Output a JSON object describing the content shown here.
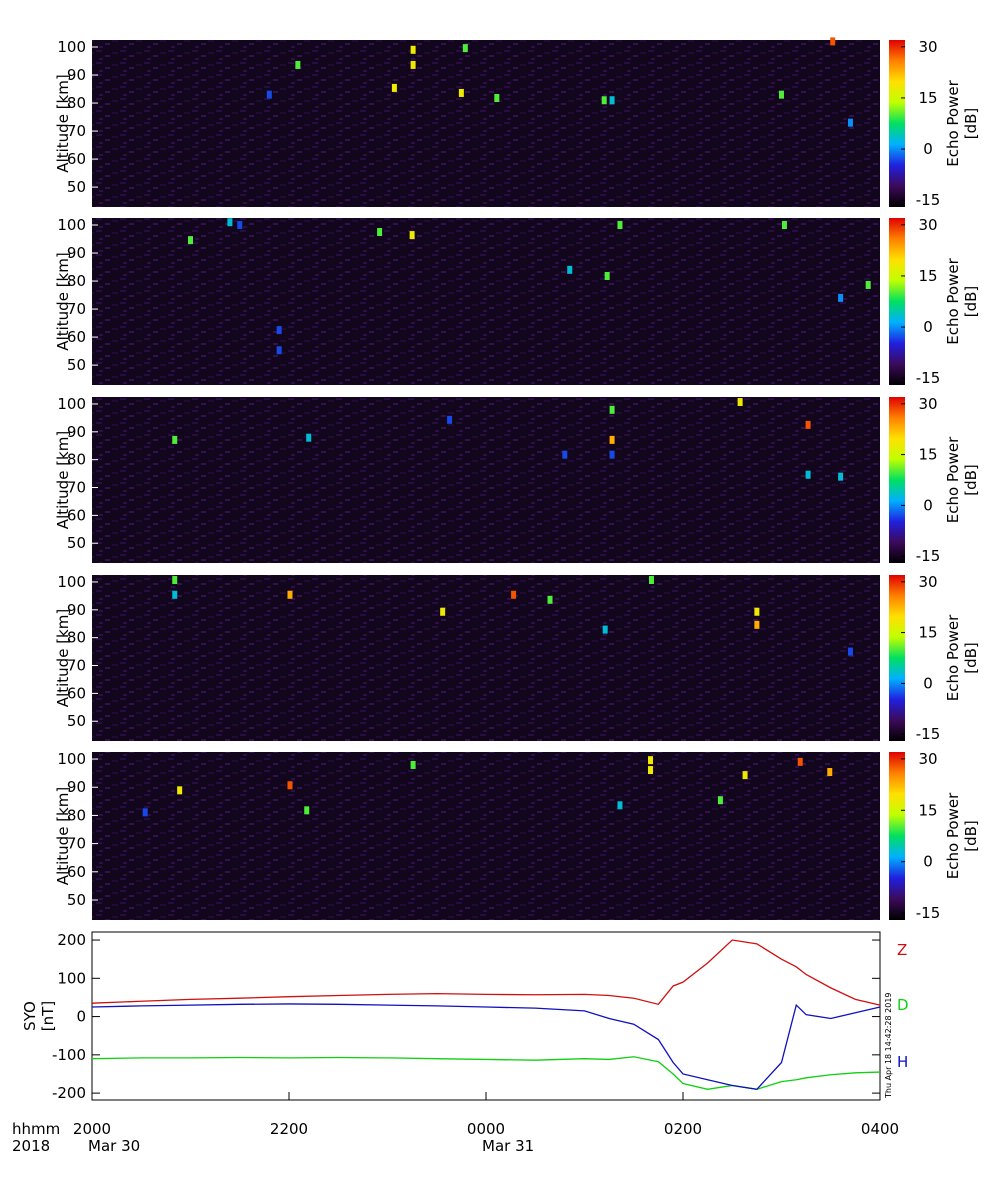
{
  "chart_data": [
    {
      "type": "heatmap",
      "ylabel": "Altitude [km]",
      "ylim": [
        42.9,
        102.5
      ],
      "yticks": [
        50,
        60,
        70,
        80,
        90,
        100
      ],
      "xlim": [
        0,
        8
      ],
      "colorbar_label": [
        "Echo Power",
        "[dB]"
      ],
      "clim": [
        -17,
        32
      ],
      "cticks": [
        -15,
        0,
        15,
        30
      ],
      "colormap": [
        "#000000",
        "#3c0a5a",
        "#2020e0",
        "#00b0ff",
        "#00e060",
        "#c0ff00",
        "#ffe000",
        "#ff8000",
        "#e00000"
      ],
      "echoes": {
        "t": [
          3.26,
          3.26,
          3.79,
          2.09,
          5.2,
          5.28,
          3.75,
          3.07,
          7.7,
          7.52,
          4.11,
          7.0,
          1.8
        ],
        "alt": [
          99,
          93.6,
          99.6,
          93.6,
          81,
          81,
          83.6,
          85.4,
          73,
          102,
          81.8,
          83,
          83
        ],
        "power": [
          18,
          18,
          10,
          10,
          10,
          3,
          18,
          18,
          0,
          28,
          10,
          10,
          -3
        ]
      }
    },
    {
      "type": "heatmap",
      "ylabel": "Altitude [km]",
      "ylim": [
        42.9,
        102.5
      ],
      "yticks": [
        50,
        60,
        70,
        80,
        90,
        100
      ],
      "xlim": [
        0,
        8
      ],
      "colorbar_label": [
        "Echo Power",
        "[dB]"
      ],
      "clim": [
        -17,
        32
      ],
      "cticks": [
        -15,
        0,
        15,
        30
      ],
      "colormap": [
        "#000000",
        "#3c0a5a",
        "#2020e0",
        "#00b0ff",
        "#00e060",
        "#c0ff00",
        "#ffe000",
        "#ff8000",
        "#e00000"
      ],
      "echoes": {
        "t": [
          3.25,
          1.4,
          1.5,
          1.9,
          1.9,
          5.23,
          4.85,
          5.36,
          7.6,
          7.88,
          7.03,
          2.92,
          1.0
        ],
        "alt": [
          96.4,
          101,
          100,
          55.3,
          62.5,
          81.8,
          84,
          100,
          74,
          78.6,
          100,
          97.5,
          94.6
        ],
        "power": [
          18,
          3,
          -3,
          -3,
          -3,
          10,
          3,
          10,
          0,
          10,
          10,
          10,
          10
        ]
      }
    },
    {
      "type": "heatmap",
      "ylabel": "Altitude [km]",
      "ylim": [
        42.9,
        102.5
      ],
      "yticks": [
        50,
        60,
        70,
        80,
        90,
        100
      ],
      "xlim": [
        0,
        8
      ],
      "colorbar_label": [
        "Echo Power",
        "[dB]"
      ],
      "clim": [
        -17,
        32
      ],
      "cticks": [
        -15,
        0,
        15,
        30
      ],
      "colormap": [
        "#000000",
        "#3c0a5a",
        "#2020e0",
        "#00b0ff",
        "#00e060",
        "#c0ff00",
        "#ffe000",
        "#ff8000",
        "#e00000"
      ],
      "echoes": {
        "t": [
          7.27,
          7.6,
          5.28,
          5.28,
          7.27,
          6.58,
          3.63,
          2.2,
          4.8,
          5.28,
          0.84
        ],
        "alt": [
          74.6,
          73.9,
          97.9,
          87.1,
          92.5,
          100.7,
          94.3,
          87.9,
          81.8,
          81.8,
          87.1
        ],
        "power": [
          3,
          3,
          10,
          23,
          28,
          18,
          -3,
          3,
          -3,
          -3,
          10
        ]
      }
    },
    {
      "type": "heatmap",
      "ylabel": "Altitude [km]",
      "ylim": [
        42.9,
        102.5
      ],
      "yticks": [
        50,
        60,
        70,
        80,
        90,
        100
      ],
      "xlim": [
        0,
        8
      ],
      "colorbar_label": [
        "Echo Power",
        "[dB]"
      ],
      "clim": [
        -17,
        32
      ],
      "cticks": [
        -15,
        0,
        15,
        30
      ],
      "colormap": [
        "#000000",
        "#3c0a5a",
        "#2020e0",
        "#00b0ff",
        "#00e060",
        "#c0ff00",
        "#ffe000",
        "#ff8000",
        "#e00000"
      ],
      "echoes": {
        "t": [
          0.84,
          0.84,
          3.56,
          4.28,
          2.01,
          6.75,
          6.75,
          5.21,
          5.68,
          7.7,
          4.65
        ],
        "alt": [
          100.7,
          95.4,
          89.3,
          95.4,
          95.4,
          89.3,
          84.6,
          82.9,
          100.7,
          75,
          93.6
        ],
        "power": [
          10,
          3,
          18,
          28,
          23,
          18,
          23,
          3,
          10,
          -3,
          10
        ]
      }
    },
    {
      "type": "heatmap",
      "ylabel": "Altitude [km]",
      "ylim": [
        42.9,
        102.5
      ],
      "yticks": [
        50,
        60,
        70,
        80,
        90,
        100
      ],
      "xlim": [
        0,
        8
      ],
      "colorbar_label": [
        "Echo Power",
        "[dB]"
      ],
      "clim": [
        -17,
        32
      ],
      "cticks": [
        -15,
        0,
        15,
        30
      ],
      "colormap": [
        "#000000",
        "#3c0a5a",
        "#2020e0",
        "#00b0ff",
        "#00e060",
        "#c0ff00",
        "#ffe000",
        "#ff8000",
        "#e00000"
      ],
      "echoes": {
        "t": [
          5.67,
          5.67,
          3.26,
          2.01,
          0.89,
          0.54,
          6.38,
          5.36,
          6.63,
          7.49,
          7.19,
          2.18
        ],
        "alt": [
          99.6,
          96.1,
          97.9,
          90.7,
          88.9,
          81.1,
          85.4,
          83.6,
          94.3,
          95.4,
          99.0,
          81.8
        ],
        "power": [
          18,
          18,
          10,
          28,
          18,
          -3,
          10,
          3,
          18,
          23,
          28,
          10
        ]
      }
    },
    {
      "type": "line",
      "ylabel": [
        "SYO",
        "[nT]"
      ],
      "ylim": [
        -218,
        221
      ],
      "yticks": [
        -200,
        -100,
        0,
        100,
        200
      ],
      "xlim": [
        0,
        8
      ],
      "xticks": [
        {
          "value": 0,
          "label": "2000"
        },
        {
          "value": 2,
          "label": "2200"
        },
        {
          "value": 4,
          "label": "0000"
        },
        {
          "value": 6,
          "label": "0200"
        },
        {
          "value": 8,
          "label": "0400"
        }
      ],
      "date_labels": [
        {
          "value": 0,
          "label": "Mar 30"
        },
        {
          "value": 4,
          "label": "Mar 31"
        }
      ],
      "xlabel": "hhmm",
      "year": "2018",
      "x": [
        0,
        0.5,
        1,
        1.5,
        2,
        2.5,
        3,
        3.5,
        4,
        4.5,
        5,
        5.25,
        5.5,
        5.75,
        5.9,
        6,
        6.25,
        6.5,
        6.75,
        7,
        7.15,
        7.25,
        7.5,
        7.75,
        8
      ],
      "series": [
        {
          "name": "Z",
          "color": "#d01010",
          "values": [
            35,
            40,
            45,
            48,
            52,
            55,
            58,
            60,
            58,
            57,
            58,
            55,
            48,
            32,
            80,
            90,
            140,
            200,
            190,
            150,
            130,
            110,
            75,
            45,
            30
          ]
        },
        {
          "name": "D",
          "color": "#10d010",
          "values": [
            -110,
            -108,
            -108,
            -107,
            -108,
            -107,
            -108,
            -110,
            -112,
            -114,
            -110,
            -112,
            -105,
            -118,
            -150,
            -175,
            -190,
            -180,
            -190,
            -170,
            -165,
            -160,
            -152,
            -147,
            -145
          ]
        },
        {
          "name": "H",
          "color": "#1010c0",
          "values": [
            25,
            28,
            30,
            32,
            33,
            32,
            30,
            28,
            25,
            22,
            15,
            -5,
            -20,
            -60,
            -120,
            -150,
            -165,
            -180,
            -190,
            -120,
            30,
            5,
            -5,
            10,
            25
          ]
        }
      ],
      "timestamp": "Thu Apr 18 14:42:28 2019"
    }
  ]
}
